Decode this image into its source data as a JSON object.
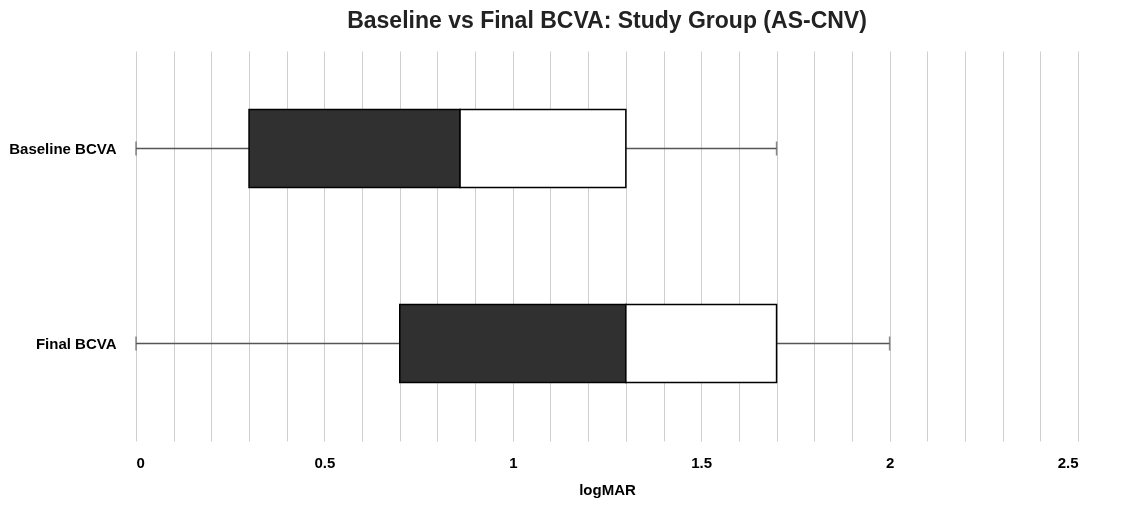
{
  "chart_data": {
    "type": "box",
    "title": "Baseline vs Final BCVA: Study Group (AS-CNV)",
    "xlabel": "logMAR",
    "orientation": "horizontal",
    "categories": [
      "Baseline BCVA",
      "Final BCVA"
    ],
    "series": [
      {
        "color": "#303030",
        "boxes": [
          {
            "low": 0,
            "q1": 0.3,
            "median": 0.86,
            "q3": 1.3,
            "high": 1.7
          },
          {
            "low": 0,
            "q1": 0.7,
            "median": 1.3,
            "q3": 1.7,
            "high": 2.0
          }
        ]
      }
    ],
    "xlim": [
      0,
      2.5
    ],
    "xticks": [
      0,
      {
        "value": 0.1,
        "label": null
      },
      {
        "value": 0.2,
        "label": null
      },
      {
        "value": 0.3,
        "label": null
      },
      {
        "value": 0.4,
        "label": null
      },
      0.5,
      {
        "value": 0.6,
        "label": null
      },
      {
        "value": 0.7,
        "label": null
      },
      {
        "value": 0.8,
        "label": null
      },
      {
        "value": 0.9,
        "label": null
      },
      1,
      {
        "value": 1.1,
        "label": null
      },
      {
        "value": 1.2,
        "label": null
      },
      {
        "value": 1.3,
        "label": null
      },
      {
        "value": 1.4,
        "label": null
      },
      1.5,
      {
        "value": 1.6,
        "label": null
      },
      {
        "value": 1.7,
        "label": null
      },
      {
        "value": 1.8,
        "label": null
      },
      {
        "value": 1.9,
        "label": null
      },
      2,
      {
        "value": 2.1,
        "label": null
      },
      {
        "value": 2.2,
        "label": null
      },
      {
        "value": 2.3,
        "label": null
      },
      {
        "value": 2.4,
        "label": null
      },
      2.5
    ],
    "grid": "x"
  }
}
